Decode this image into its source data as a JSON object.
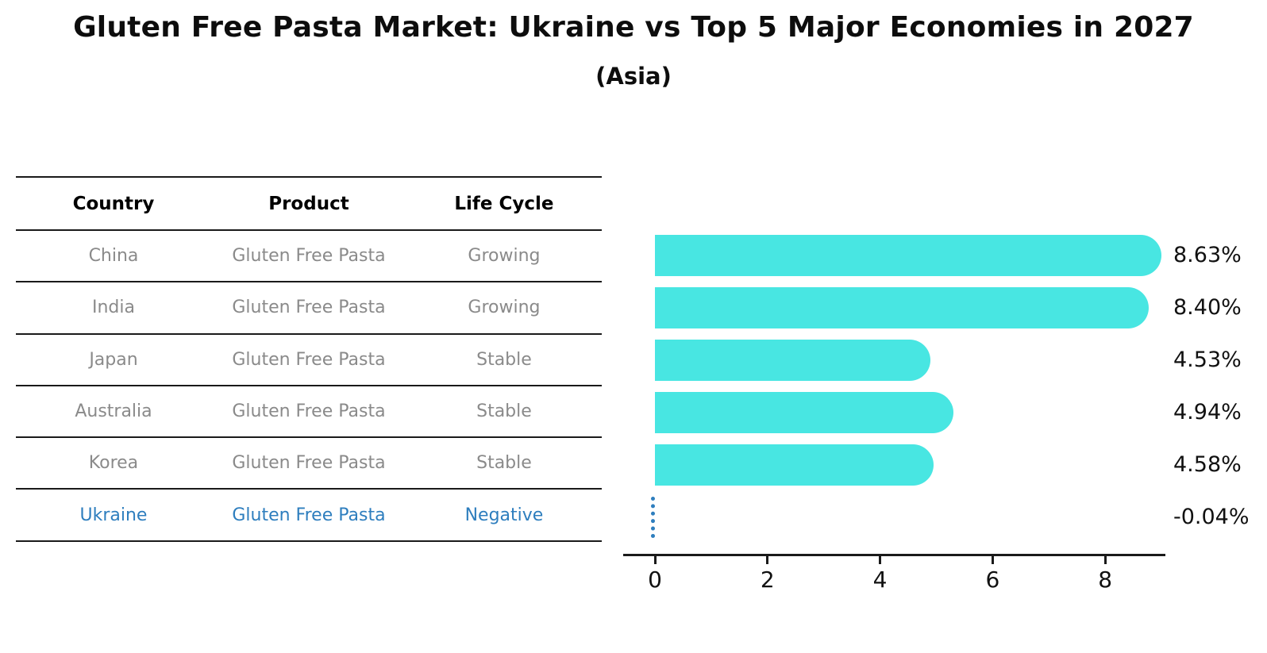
{
  "title": "Gluten Free Pasta Market: Ukraine vs Top 5 Major Economies in 2027",
  "subtitle": "(Asia)",
  "table": {
    "columns": [
      "Country",
      "Product",
      "Life Cycle"
    ],
    "rows": [
      {
        "country": "China",
        "product": "Gluten Free Pasta",
        "life_cycle": "Growing",
        "highlight": false
      },
      {
        "country": "India",
        "product": "Gluten Free Pasta",
        "life_cycle": "Growing",
        "highlight": false
      },
      {
        "country": "Japan",
        "product": "Gluten Free Pasta",
        "life_cycle": "Stable",
        "highlight": false
      },
      {
        "country": "Australia",
        "product": "Gluten Free Pasta",
        "life_cycle": "Stable",
        "highlight": false
      },
      {
        "country": "Korea",
        "product": "Gluten Free Pasta",
        "life_cycle": "Stable",
        "highlight": false
      },
      {
        "country": "Ukraine",
        "product": "Gluten Free Pasta",
        "life_cycle": "Negative",
        "highlight": true
      }
    ]
  },
  "chart_data": {
    "type": "bar",
    "orientation": "horizontal",
    "title": "Gluten Free Pasta Market: Ukraine vs Top 5 Major Economies in 2027 (Asia)",
    "categories": [
      "China",
      "India",
      "Japan",
      "Australia",
      "Korea",
      "Ukraine"
    ],
    "values": [
      8.63,
      8.4,
      4.53,
      4.94,
      4.58,
      -0.04
    ],
    "labels": [
      "8.63%",
      "8.40%",
      "4.53%",
      "4.94%",
      "4.58%",
      "-0.04%"
    ],
    "highlight_index": 5,
    "xticks": [
      0,
      2,
      4,
      6,
      8
    ],
    "xlim": [
      -0.55,
      9.1
    ],
    "xlabel": "",
    "ylabel": "",
    "grid": false,
    "legend": false,
    "bar_color": "#48e6e2",
    "highlight_color": "#2e7ebe",
    "axis_color": "#1a1a1a",
    "label_color": "#111111"
  },
  "colors": {
    "background": "#ffffff",
    "bar": "#48e6e2",
    "highlight": "#2e7ebe",
    "row_text": "#8a8a8a",
    "header_text": "#000000"
  }
}
